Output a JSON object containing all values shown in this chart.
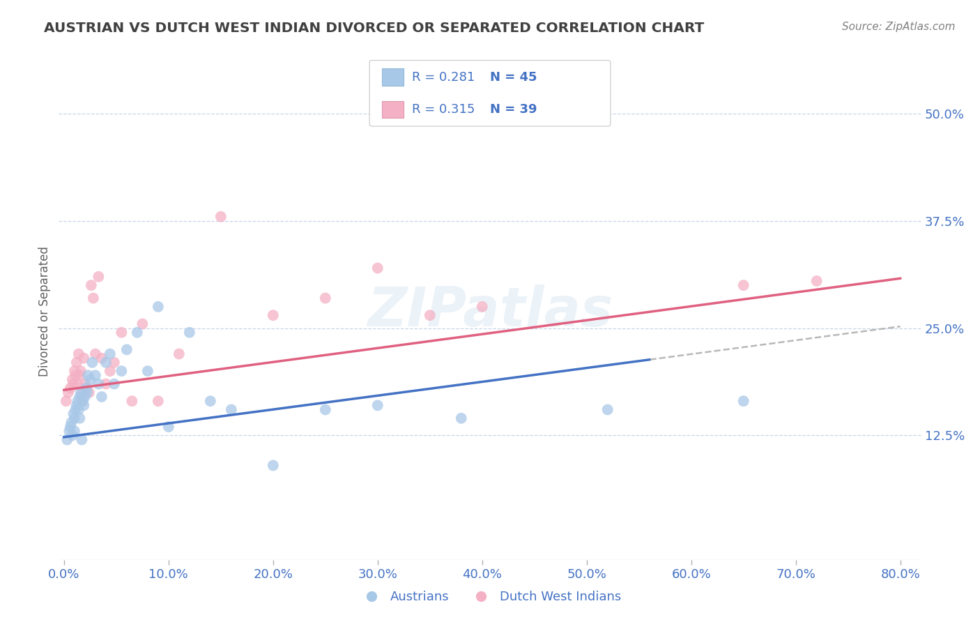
{
  "title": "AUSTRIAN VS DUTCH WEST INDIAN DIVORCED OR SEPARATED CORRELATION CHART",
  "source": "Source: ZipAtlas.com",
  "ylabel": "Divorced or Separated",
  "x_ticks": [
    "0.0%",
    "10.0%",
    "20.0%",
    "30.0%",
    "40.0%",
    "50.0%",
    "60.0%",
    "70.0%",
    "80.0%"
  ],
  "x_tick_vals": [
    0.0,
    0.1,
    0.2,
    0.3,
    0.4,
    0.5,
    0.6,
    0.7,
    0.8
  ],
  "y_ticks": [
    "12.5%",
    "25.0%",
    "37.5%",
    "50.0%"
  ],
  "y_tick_vals": [
    0.125,
    0.25,
    0.375,
    0.5
  ],
  "xlim": [
    -0.005,
    0.82
  ],
  "ylim": [
    -0.02,
    0.56
  ],
  "austrians_R": 0.281,
  "austrians_N": 45,
  "dutch_R": 0.315,
  "dutch_N": 39,
  "austrians_color": "#a8c8e8",
  "dutch_color": "#f4b0c4",
  "austrians_line_color": "#4472c4",
  "dutch_line_color": "#e06080",
  "title_color": "#404040",
  "axis_label_color": "#4472c4",
  "legend_label_color": "#4472c4",
  "watermark": "ZIPatlas",
  "austrians_x": [
    0.003,
    0.005,
    0.006,
    0.007,
    0.008,
    0.009,
    0.01,
    0.01,
    0.011,
    0.012,
    0.013,
    0.014,
    0.015,
    0.015,
    0.016,
    0.017,
    0.018,
    0.019,
    0.02,
    0.021,
    0.022,
    0.023,
    0.025,
    0.027,
    0.03,
    0.033,
    0.036,
    0.04,
    0.044,
    0.048,
    0.055,
    0.06,
    0.07,
    0.08,
    0.09,
    0.1,
    0.12,
    0.14,
    0.16,
    0.2,
    0.25,
    0.3,
    0.38,
    0.52,
    0.65
  ],
  "austrians_y": [
    0.12,
    0.13,
    0.135,
    0.14,
    0.125,
    0.15,
    0.145,
    0.13,
    0.155,
    0.16,
    0.165,
    0.155,
    0.17,
    0.145,
    0.175,
    0.12,
    0.165,
    0.16,
    0.17,
    0.18,
    0.175,
    0.195,
    0.19,
    0.21,
    0.195,
    0.185,
    0.17,
    0.21,
    0.22,
    0.185,
    0.2,
    0.225,
    0.245,
    0.2,
    0.275,
    0.135,
    0.245,
    0.165,
    0.155,
    0.09,
    0.155,
    0.16,
    0.145,
    0.155,
    0.165
  ],
  "dutch_x": [
    0.002,
    0.004,
    0.006,
    0.008,
    0.009,
    0.01,
    0.011,
    0.012,
    0.013,
    0.014,
    0.015,
    0.016,
    0.017,
    0.018,
    0.019,
    0.02,
    0.022,
    0.024,
    0.026,
    0.028,
    0.03,
    0.033,
    0.036,
    0.04,
    0.044,
    0.048,
    0.055,
    0.065,
    0.075,
    0.09,
    0.11,
    0.15,
    0.2,
    0.25,
    0.3,
    0.35,
    0.4,
    0.65,
    0.72
  ],
  "dutch_y": [
    0.165,
    0.175,
    0.18,
    0.19,
    0.185,
    0.2,
    0.195,
    0.21,
    0.185,
    0.22,
    0.195,
    0.2,
    0.165,
    0.175,
    0.215,
    0.185,
    0.18,
    0.175,
    0.3,
    0.285,
    0.22,
    0.31,
    0.215,
    0.185,
    0.2,
    0.21,
    0.245,
    0.165,
    0.255,
    0.165,
    0.22,
    0.38,
    0.265,
    0.285,
    0.32,
    0.265,
    0.275,
    0.3,
    0.305
  ]
}
